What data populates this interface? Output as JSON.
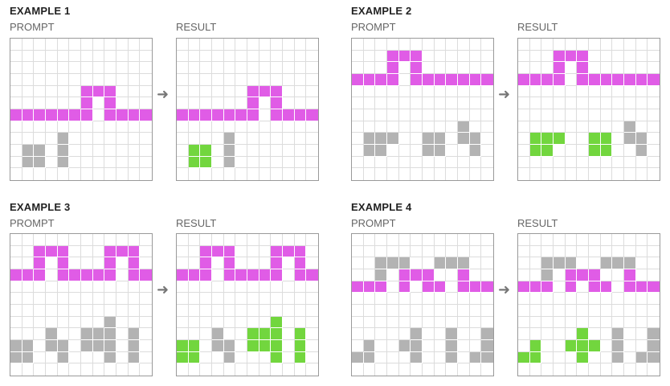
{
  "palette": {
    "0": "#ffffff",
    "1": "#e05ce6",
    "2": "#b3b3b3",
    "3": "#72d63e"
  },
  "arrow_glyph": "➜",
  "examples": [
    {
      "title": "EXAMPLE 1",
      "prompt_label": "PROMPT",
      "result_label": "RESULT",
      "prompt": [
        "000000000000",
        "000000000000",
        "000000000000",
        "000000000000",
        "000000111000",
        "000000101000",
        "111111101111",
        "000000000000",
        "000020000000",
        "022020000000",
        "022020000000",
        "000000000000"
      ],
      "result": [
        "000000000000",
        "000000000000",
        "000000000000",
        "000000000000",
        "000000111000",
        "000000101000",
        "111111101111",
        "000000000000",
        "000020000000",
        "033020000000",
        "033020000000",
        "000000000000"
      ]
    },
    {
      "title": "EXAMPLE 2",
      "prompt_label": "PROMPT",
      "result_label": "RESULT",
      "prompt": [
        "000000000000",
        "000111000000",
        "000101000000",
        "111101111111",
        "000000000000",
        "000000000000",
        "000000000000",
        "000000000200",
        "022200220220",
        "022000220020",
        "000000000000",
        "000000000000"
      ],
      "result": [
        "000000000000",
        "000111000000",
        "000101000000",
        "111101111111",
        "000000000000",
        "000000000000",
        "000000000000",
        "000000000200",
        "033300330220",
        "033000330020",
        "000000000000",
        "000000000000"
      ]
    },
    {
      "title": "EXAMPLE 3",
      "prompt_label": "PROMPT",
      "result_label": "RESULT",
      "prompt": [
        "000000000000",
        "001110001110",
        "001010001010",
        "111011111011",
        "000000000000",
        "000000000000",
        "000000000000",
        "000000002000",
        "000200222020",
        "220220222020",
        "220020002020",
        "000000000000"
      ],
      "result": [
        "000000000000",
        "001110001110",
        "001010001010",
        "111011111011",
        "000000000000",
        "000000000000",
        "000000000000",
        "000000003000",
        "000200333030",
        "330220333030",
        "330020003030",
        "000000000000"
      ]
    },
    {
      "title": "EXAMPLE 4",
      "prompt_label": "PROMPT",
      "result_label": "RESULT",
      "prompt": [
        "000000000000",
        "000000000000",
        "002220022200",
        "002011100100",
        "111010110111",
        "000000000000",
        "000000000000",
        "000000000000",
        "000002002002",
        "020022002002",
        "220002002022",
        "000000000000"
      ],
      "result": [
        "000000000000",
        "000000000000",
        "002220022200",
        "002011100100",
        "111010110111",
        "000000000000",
        "000000000000",
        "000000000000",
        "000003002002",
        "030033302002",
        "330003002022",
        "000000000000"
      ]
    }
  ]
}
